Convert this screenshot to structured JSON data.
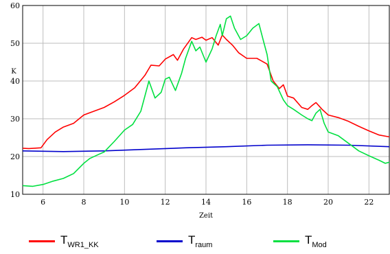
{
  "chart_data": {
    "type": "line",
    "xlabel": "Zeit",
    "ylabel": "K",
    "xlim": [
      5,
      23
    ],
    "ylim": [
      10,
      60
    ],
    "x_ticks": [
      6,
      8,
      10,
      12,
      14,
      16,
      18,
      20,
      22
    ],
    "y_ticks": [
      10,
      20,
      30,
      40,
      50,
      60
    ],
    "grid": true,
    "legend_position": "bottom",
    "series": [
      {
        "name": "T",
        "subscript": "WR1_KK",
        "color": "#ff0000",
        "points": [
          [
            5,
            22.2
          ],
          [
            5.3,
            22.1
          ],
          [
            5.9,
            22.3
          ],
          [
            6.2,
            24.5
          ],
          [
            6.6,
            26.5
          ],
          [
            7,
            27.8
          ],
          [
            7.5,
            28.8
          ],
          [
            8,
            31
          ],
          [
            8.5,
            32
          ],
          [
            9,
            33
          ],
          [
            9.5,
            34.5
          ],
          [
            10,
            36.2
          ],
          [
            10.5,
            38.2
          ],
          [
            11,
            41.5
          ],
          [
            11.3,
            44.2
          ],
          [
            11.7,
            44
          ],
          [
            12,
            45.8
          ],
          [
            12.4,
            47
          ],
          [
            12.6,
            45.5
          ],
          [
            12.9,
            48.5
          ],
          [
            13.3,
            51.5
          ],
          [
            13.5,
            51
          ],
          [
            13.8,
            51.6
          ],
          [
            14,
            50.8
          ],
          [
            14.3,
            51.5
          ],
          [
            14.6,
            49.5
          ],
          [
            14.8,
            52.2
          ],
          [
            15,
            51
          ],
          [
            15.3,
            49.5
          ],
          [
            15.6,
            47.5
          ],
          [
            16,
            46
          ],
          [
            16.5,
            46
          ],
          [
            17,
            44.5
          ],
          [
            17.3,
            40
          ],
          [
            17.6,
            38
          ],
          [
            17.8,
            39
          ],
          [
            18,
            36
          ],
          [
            18.3,
            35.5
          ],
          [
            18.7,
            33
          ],
          [
            19,
            32.5
          ],
          [
            19.2,
            33.5
          ],
          [
            19.4,
            34.3
          ],
          [
            19.7,
            32.5
          ],
          [
            20,
            31
          ],
          [
            20.5,
            30.3
          ],
          [
            21,
            29.3
          ],
          [
            21.5,
            28
          ],
          [
            22,
            26.8
          ],
          [
            22.5,
            25.7
          ],
          [
            23,
            25.2
          ]
        ]
      },
      {
        "name": "T",
        "subscript": "raum",
        "color": "#0000cc",
        "points": [
          [
            5,
            21.5
          ],
          [
            7,
            21.3
          ],
          [
            9,
            21.5
          ],
          [
            11,
            21.9
          ],
          [
            13,
            22.3
          ],
          [
            15,
            22.6
          ],
          [
            17,
            23
          ],
          [
            19,
            23.1
          ],
          [
            21,
            23
          ],
          [
            23,
            22.6
          ]
        ]
      },
      {
        "name": "T",
        "subscript": "Mod",
        "color": "#00e040",
        "points": [
          [
            5,
            12.3
          ],
          [
            5.5,
            12.1
          ],
          [
            6,
            12.6
          ],
          [
            6.5,
            13.5
          ],
          [
            7,
            14.2
          ],
          [
            7.5,
            15.5
          ],
          [
            8,
            18.2
          ],
          [
            8.3,
            19.5
          ],
          [
            8.7,
            20.5
          ],
          [
            9,
            21.2
          ],
          [
            9.5,
            24
          ],
          [
            10,
            27
          ],
          [
            10.4,
            28.5
          ],
          [
            10.8,
            32
          ],
          [
            11,
            36
          ],
          [
            11.2,
            40
          ],
          [
            11.5,
            35.5
          ],
          [
            11.8,
            37
          ],
          [
            12,
            40.5
          ],
          [
            12.2,
            41
          ],
          [
            12.5,
            37.5
          ],
          [
            12.8,
            42
          ],
          [
            13,
            46
          ],
          [
            13.3,
            50.5
          ],
          [
            13.5,
            48
          ],
          [
            13.7,
            49
          ],
          [
            14,
            45
          ],
          [
            14.3,
            48.5
          ],
          [
            14.5,
            52
          ],
          [
            14.7,
            55
          ],
          [
            14.8,
            52
          ],
          [
            15,
            56.5
          ],
          [
            15.2,
            57.2
          ],
          [
            15.4,
            54
          ],
          [
            15.7,
            51
          ],
          [
            16,
            52
          ],
          [
            16.3,
            54
          ],
          [
            16.6,
            55.2
          ],
          [
            16.8,
            51
          ],
          [
            17,
            47
          ],
          [
            17.2,
            40
          ],
          [
            17.5,
            38.5
          ],
          [
            17.8,
            35
          ],
          [
            18,
            33.5
          ],
          [
            18.3,
            32.5
          ],
          [
            18.7,
            31
          ],
          [
            19,
            30
          ],
          [
            19.2,
            29.5
          ],
          [
            19.4,
            31.5
          ],
          [
            19.6,
            32.5
          ],
          [
            19.8,
            28.8
          ],
          [
            20,
            26.5
          ],
          [
            20.5,
            25.5
          ],
          [
            21,
            23.5
          ],
          [
            21.5,
            21.5
          ],
          [
            22,
            20.2
          ],
          [
            22.5,
            19
          ],
          [
            22.8,
            18.2
          ],
          [
            23,
            18.5
          ]
        ]
      }
    ]
  }
}
